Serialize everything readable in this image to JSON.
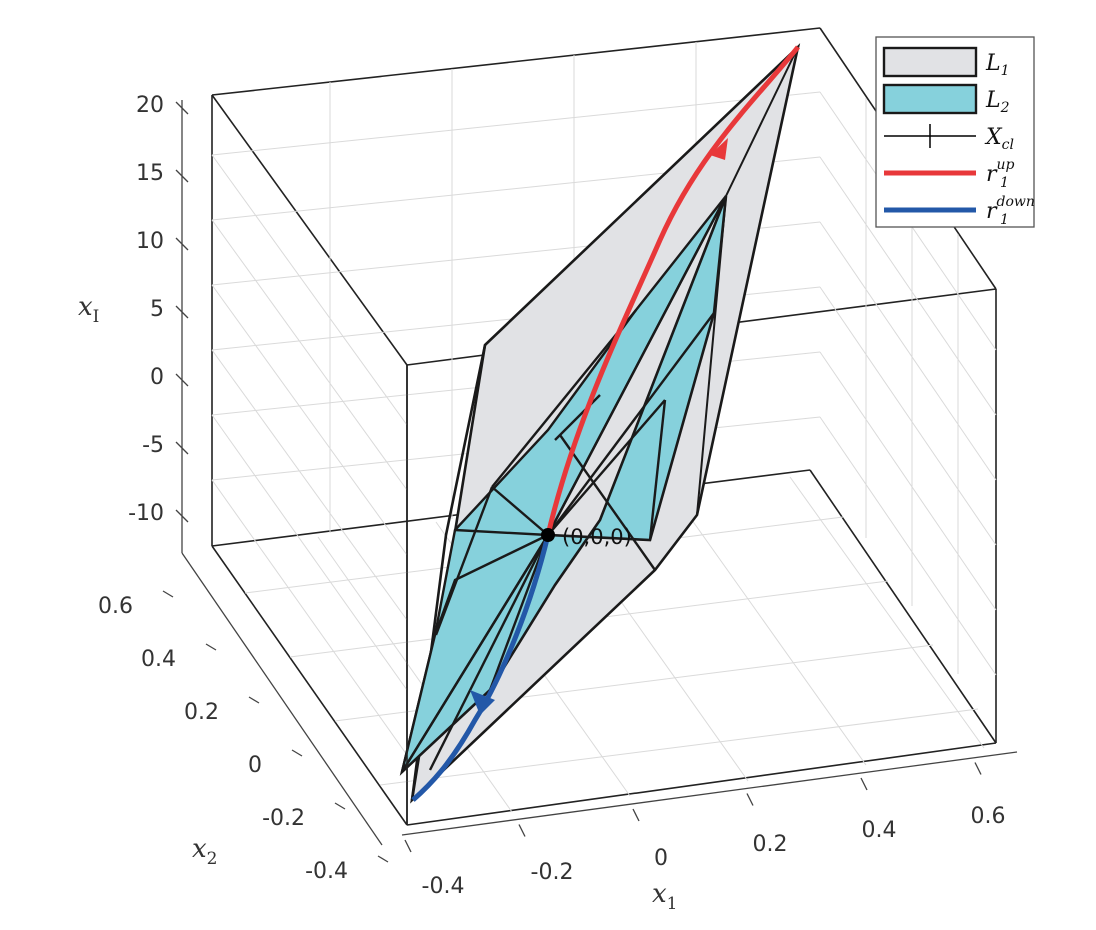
{
  "chart_data": {
    "type": "3d-surface",
    "title": "",
    "axes": {
      "x1": {
        "label": "x",
        "sub": "1",
        "ticks": [
          "-0.4",
          "-0.2",
          "0",
          "0.2",
          "0.4",
          "0.6"
        ]
      },
      "x2": {
        "label": "x",
        "sub": "2",
        "ticks": [
          "-0.4",
          "-0.2",
          "0",
          "0.2",
          "0.4",
          "0.6"
        ]
      },
      "xI": {
        "label": "x",
        "sub": "I",
        "ticks": [
          "-10",
          "-5",
          "0",
          "5",
          "10",
          "15",
          "20"
        ]
      }
    },
    "grid": true,
    "legend": {
      "placement": "top-right",
      "entries": [
        {
          "name": "L",
          "sub": "1",
          "sup": "",
          "style": "patch",
          "color": "#e1e2e5"
        },
        {
          "name": "L",
          "sub": "2",
          "sup": "",
          "style": "patch",
          "color": "#86d1dc"
        },
        {
          "name": "X",
          "sub": "cl",
          "sup": "",
          "style": "line-cross",
          "color": "#000000"
        },
        {
          "name": "r",
          "sub": "1",
          "sup": "up",
          "style": "line",
          "color": "#e8383a"
        },
        {
          "name": "r",
          "sub": "1",
          "sup": "down",
          "style": "line",
          "color": "#2358a8"
        }
      ]
    },
    "series": [
      {
        "name": "L1",
        "color": "#e1e2e5",
        "edge": "#1a1a1a"
      },
      {
        "name": "L2",
        "color": "#86d1dc",
        "edge": "#1a1a1a"
      },
      {
        "name": "Xcl",
        "color": "#000000"
      },
      {
        "name": "r1up",
        "color": "#e8383a",
        "start": [
          0,
          0,
          0
        ],
        "end": [
          0.6,
          0.6,
          20
        ]
      },
      {
        "name": "r1down",
        "color": "#2358a8",
        "start": [
          0,
          0,
          0
        ],
        "end": [
          -0.4,
          -0.4,
          -12
        ]
      }
    ],
    "annotations": [
      {
        "text": "(0,0,0)",
        "point": [
          0,
          0,
          0
        ]
      }
    ]
  }
}
